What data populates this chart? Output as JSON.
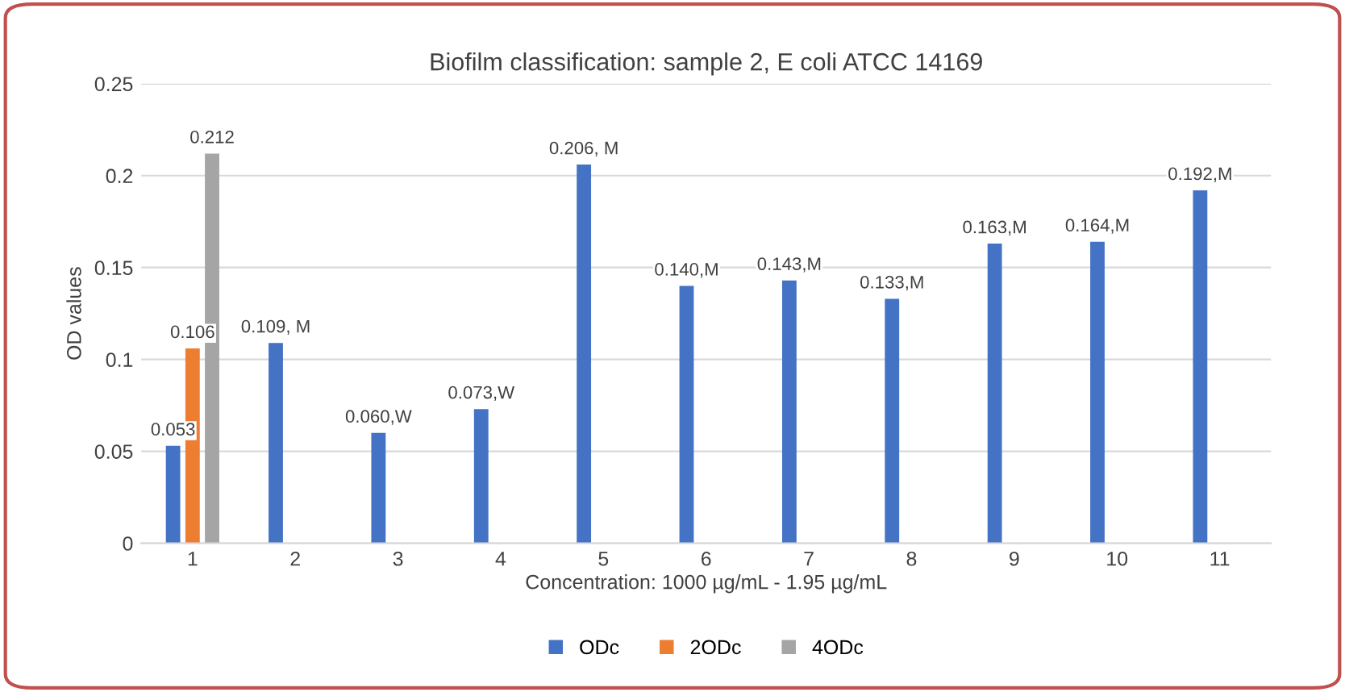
{
  "chart_data": {
    "type": "bar",
    "title": "Biofilm classification: sample 2, E coli ATCC 14169",
    "xlabel": "Concentration: 1000 µg/mL - 1.95 µg/mL",
    "ylabel": "OD values",
    "categories": [
      "1",
      "2",
      "3",
      "4",
      "5",
      "6",
      "7",
      "8",
      "9",
      "10",
      "11"
    ],
    "series": [
      {
        "name": "ODc",
        "color": "#4472c4",
        "values": [
          0.053,
          0.109,
          0.06,
          0.073,
          0.206,
          0.14,
          0.143,
          0.133,
          0.163,
          0.164,
          0.192
        ],
        "value_labels": [
          "0.053",
          "0.109, M",
          "0.060,W",
          "0.073,W",
          "0.206, M",
          "0.140,M",
          "0.143,M",
          "0.133,M",
          "0.163,M",
          "0.164,M",
          "0.192,M"
        ]
      },
      {
        "name": "2ODc",
        "color": "#ed7d31",
        "values": [
          0.106,
          null,
          null,
          null,
          null,
          null,
          null,
          null,
          null,
          null,
          null
        ],
        "value_labels": [
          "0.106",
          null,
          null,
          null,
          null,
          null,
          null,
          null,
          null,
          null,
          null
        ]
      },
      {
        "name": "4ODc",
        "color": "#a5a5a5",
        "values": [
          0.212,
          null,
          null,
          null,
          null,
          null,
          null,
          null,
          null,
          null,
          null
        ],
        "value_labels": [
          "0.212",
          null,
          null,
          null,
          null,
          null,
          null,
          null,
          null,
          null,
          null
        ]
      }
    ],
    "ylim": [
      0,
      0.25
    ],
    "yticks": [
      0,
      0.05,
      0.1,
      0.15,
      0.2,
      0.25
    ],
    "grid": "y",
    "legend": "bottom"
  }
}
